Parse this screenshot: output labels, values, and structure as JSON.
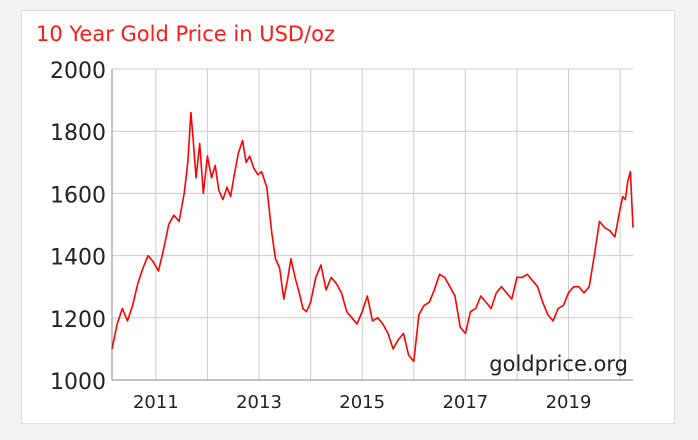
{
  "chart_data": {
    "type": "line",
    "title": "10 Year Gold Price in USD/oz",
    "watermark": "goldprice.org",
    "xlabel": "",
    "ylabel": "",
    "xlim": [
      2010.15,
      2020.25
    ],
    "ylim": [
      1000,
      2000
    ],
    "x_ticks": [
      2011,
      2013,
      2015,
      2017,
      2019
    ],
    "x_tick_labels": [
      "2011",
      "2013",
      "2015",
      "2017",
      "2019"
    ],
    "y_ticks": [
      1000,
      1200,
      1400,
      1600,
      1800,
      2000
    ],
    "y_tick_labels": [
      "1000",
      "1200",
      "1400",
      "1600",
      "1800",
      "2000"
    ],
    "x_grid": [
      2011,
      2012,
      2013,
      2014,
      2015,
      2016,
      2017,
      2018,
      2019,
      2020
    ],
    "grid": true,
    "line_color": "#ff0000",
    "series": [
      {
        "x": [
          2010.15,
          2010.25,
          2010.35,
          2010.45,
          2010.55,
          2010.65,
          2010.75,
          2010.85,
          2010.95,
          2011.05,
          2011.15,
          2011.25,
          2011.35,
          2011.45,
          2011.55,
          2011.62,
          2011.68,
          2011.72,
          2011.78,
          2011.85,
          2011.92,
          2012.0,
          2012.08,
          2012.15,
          2012.22,
          2012.3,
          2012.38,
          2012.45,
          2012.52,
          2012.6,
          2012.68,
          2012.75,
          2012.82,
          2012.9,
          2012.98,
          2013.05,
          2013.15,
          2013.25,
          2013.32,
          2013.4,
          2013.48,
          2013.55,
          2013.62,
          2013.7,
          2013.78,
          2013.85,
          2013.92,
          2014.0,
          2014.1,
          2014.2,
          2014.3,
          2014.4,
          2014.5,
          2014.6,
          2014.7,
          2014.8,
          2014.9,
          2015.0,
          2015.1,
          2015.2,
          2015.3,
          2015.4,
          2015.5,
          2015.6,
          2015.7,
          2015.8,
          2015.9,
          2016.0,
          2016.1,
          2016.2,
          2016.3,
          2016.4,
          2016.5,
          2016.6,
          2016.7,
          2016.8,
          2016.9,
          2017.0,
          2017.1,
          2017.2,
          2017.3,
          2017.4,
          2017.5,
          2017.6,
          2017.7,
          2017.8,
          2017.9,
          2018.0,
          2018.1,
          2018.2,
          2018.3,
          2018.4,
          2018.5,
          2018.6,
          2018.7,
          2018.8,
          2018.9,
          2019.0,
          2019.1,
          2019.2,
          2019.3,
          2019.4,
          2019.5,
          2019.6,
          2019.7,
          2019.8,
          2019.9,
          2020.0,
          2020.05,
          2020.1,
          2020.15,
          2020.2,
          2020.25
        ],
        "y": [
          1100,
          1180,
          1230,
          1190,
          1240,
          1310,
          1360,
          1400,
          1380,
          1350,
          1420,
          1500,
          1530,
          1510,
          1600,
          1700,
          1860,
          1780,
          1650,
          1760,
          1600,
          1720,
          1650,
          1690,
          1610,
          1580,
          1620,
          1590,
          1660,
          1730,
          1770,
          1700,
          1720,
          1680,
          1660,
          1670,
          1620,
          1470,
          1390,
          1360,
          1260,
          1320,
          1390,
          1330,
          1280,
          1230,
          1220,
          1250,
          1330,
          1370,
          1290,
          1330,
          1310,
          1280,
          1220,
          1200,
          1180,
          1220,
          1270,
          1190,
          1200,
          1180,
          1150,
          1100,
          1130,
          1150,
          1080,
          1060,
          1210,
          1240,
          1250,
          1290,
          1340,
          1330,
          1300,
          1270,
          1170,
          1150,
          1220,
          1230,
          1270,
          1250,
          1230,
          1280,
          1300,
          1280,
          1260,
          1330,
          1330,
          1340,
          1320,
          1300,
          1250,
          1210,
          1190,
          1230,
          1240,
          1280,
          1300,
          1300,
          1280,
          1300,
          1400,
          1510,
          1490,
          1480,
          1460,
          1550,
          1590,
          1580,
          1640,
          1670,
          1490
        ]
      }
    ]
  }
}
